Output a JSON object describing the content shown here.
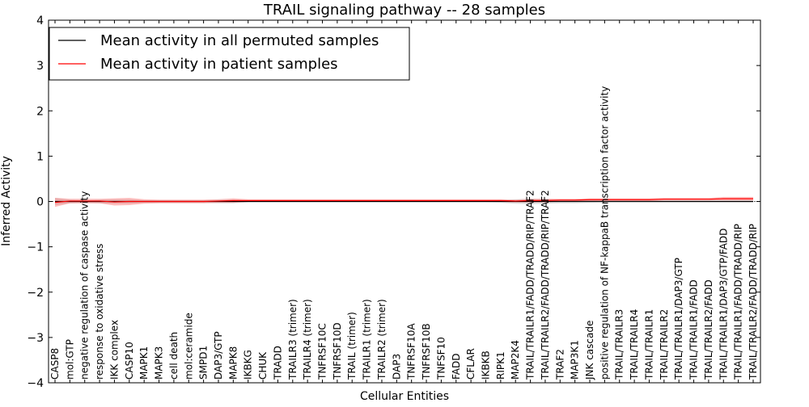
{
  "chart_data": {
    "type": "line",
    "title": "TRAIL signaling pathway -- 28 samples",
    "xlabel": "Cellular Entities",
    "ylabel": "Inferred Activity",
    "ylim": [
      -4,
      4
    ],
    "yticks": [
      -4,
      -3,
      -2,
      -1,
      0,
      1,
      2,
      3,
      4
    ],
    "ytick_labels": [
      "−4",
      "−3",
      "−2",
      "−1",
      "0",
      "1",
      "2",
      "3",
      "4"
    ],
    "legend_position": "top-left",
    "categories": [
      "CASP8",
      "mol:GTP",
      "negative regulation of caspase activity",
      "response to oxidative stress",
      "IKK complex",
      "CASP10",
      "MAPK1",
      "MAPK3",
      "cell death",
      "mol:ceramide",
      "SMPD1",
      "DAP3/GTP",
      "MAPK8",
      "IKBKG",
      "CHUK",
      "TRADD",
      "TRAILR3 (trimer)",
      "TRAILR4 (trimer)",
      "TNFRSF10C",
      "TNFRSF10D",
      "TRAIL (trimer)",
      "TRAILR1 (trimer)",
      "TRAILR2 (trimer)",
      "DAP3",
      "TNFRSF10A",
      "TNFRSF10B",
      "TNFSF10",
      "FADD",
      "CFLAR",
      "IKBKB",
      "RIPK1",
      "MAP2K4",
      "TRAIL/TRAILR1/FADD/TRADD/RIP/TRAF2",
      "TRAIL/TRAILR2/FADD/TRADD/RIP/TRAF2",
      "TRAF2",
      "MAP3K1",
      "JNK cascade",
      "positive regulation of NF-kappaB transcription factor activity",
      "TRAIL/TRAILR3",
      "TRAIL/TRAILR4",
      "TRAIL/TRAILR1",
      "TRAIL/TRAILR2",
      "TRAIL/TRAILR1/DAP3/GTP",
      "TRAIL/TRAILR1/FADD",
      "TRAIL/TRAILR2/FADD",
      "TRAIL/TRAILR1/DAP3/GTP/FADD",
      "TRAIL/TRAILR1/FADD/TRADD/RIP",
      "TRAIL/TRAILR2/FADD/TRADD/RIP"
    ],
    "series": [
      {
        "name": "Mean activity in all permuted samples",
        "color": "#000000",
        "values": [
          0,
          0,
          0,
          0,
          0,
          0,
          0,
          0,
          0,
          0,
          0,
          0,
          0,
          0,
          0,
          0,
          0,
          0,
          0,
          0,
          0,
          0,
          0,
          0,
          0,
          0,
          0,
          0,
          0,
          0,
          0,
          0,
          0,
          0,
          0,
          0,
          0,
          0,
          0,
          0,
          0,
          0,
          0,
          0,
          0,
          0,
          0,
          0
        ],
        "band": [
          0.08,
          0.04,
          0.03,
          0.04,
          0.05,
          0.05,
          0.03,
          0.03,
          0.03,
          0.03,
          0.03,
          0.04,
          0.04,
          0.02,
          0.02,
          0.02,
          0.02,
          0.02,
          0.02,
          0.02,
          0.02,
          0.02,
          0.02,
          0.02,
          0.02,
          0.02,
          0.02,
          0.02,
          0.02,
          0.02,
          0.03,
          0.05,
          0.06,
          0.05,
          0.04,
          0.04,
          0.03,
          0.02,
          0.02,
          0.02,
          0.02,
          0.02,
          0.02,
          0.02,
          0.02,
          0.02,
          0.02,
          0.02
        ]
      },
      {
        "name": "Mean activity in patient samples",
        "color": "#ff0000",
        "values": [
          -0.02,
          0.01,
          0.01,
          0.01,
          -0.01,
          0.0,
          0.0,
          0.0,
          0.0,
          0.0,
          0.0,
          0.01,
          0.02,
          0.02,
          0.02,
          0.02,
          0.02,
          0.02,
          0.02,
          0.02,
          0.02,
          0.02,
          0.02,
          0.02,
          0.02,
          0.02,
          0.02,
          0.02,
          0.02,
          0.02,
          0.02,
          0.01,
          0.02,
          0.02,
          0.03,
          0.03,
          0.04,
          0.04,
          0.04,
          0.04,
          0.04,
          0.05,
          0.05,
          0.05,
          0.05,
          0.06,
          0.06,
          0.06
        ],
        "band": [
          0.1,
          0.05,
          0.05,
          0.05,
          0.08,
          0.08,
          0.05,
          0.04,
          0.04,
          0.04,
          0.04,
          0.04,
          0.05,
          0.03,
          0.03,
          0.03,
          0.03,
          0.03,
          0.03,
          0.03,
          0.03,
          0.03,
          0.03,
          0.03,
          0.03,
          0.03,
          0.03,
          0.03,
          0.03,
          0.03,
          0.03,
          0.03,
          0.04,
          0.04,
          0.03,
          0.03,
          0.03,
          0.03,
          0.03,
          0.03,
          0.03,
          0.03,
          0.03,
          0.03,
          0.03,
          0.04,
          0.04,
          0.04
        ]
      }
    ]
  }
}
